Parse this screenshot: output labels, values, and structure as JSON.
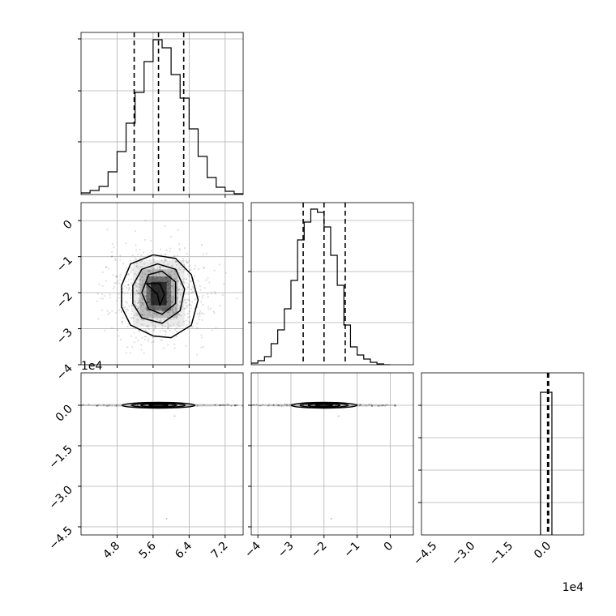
{
  "chart_data": {
    "type": "corner",
    "parameters": 3,
    "panels": [
      {
        "id": "hist-p1",
        "type": "histogram",
        "bins": [
          [
            4.0,
            4.2,
            0.01
          ],
          [
            4.2,
            4.4,
            0.025
          ],
          [
            4.4,
            4.6,
            0.05
          ],
          [
            4.6,
            4.8,
            0.14
          ],
          [
            4.8,
            5.0,
            0.265
          ],
          [
            5.0,
            5.2,
            0.44
          ],
          [
            5.2,
            5.4,
            0.63
          ],
          [
            5.4,
            5.6,
            0.82
          ],
          [
            5.6,
            5.8,
            0.955
          ],
          [
            5.8,
            6.0,
            0.905
          ],
          [
            6.0,
            6.2,
            0.74
          ],
          [
            6.2,
            6.4,
            0.595
          ],
          [
            6.4,
            6.6,
            0.405
          ],
          [
            6.6,
            6.8,
            0.235
          ],
          [
            6.8,
            7.0,
            0.105
          ],
          [
            7.0,
            7.2,
            0.045
          ],
          [
            7.2,
            7.4,
            0.02
          ],
          [
            7.4,
            7.6,
            0.005
          ]
        ],
        "quantiles": [
          5.18,
          5.72,
          6.28
        ],
        "xlim": [
          4.0,
          7.6
        ],
        "ylim": [
          0,
          1.0
        ],
        "xticks": [
          4.8,
          5.6,
          6.4,
          7.2
        ],
        "yticks": [
          0.325,
          0.64,
          0.96
        ]
      },
      {
        "id": "scatter-p1-p2",
        "type": "2d-density",
        "xlim": [
          4.0,
          7.6
        ],
        "ylim": [
          -4.0,
          0.5
        ],
        "yticks": [
          "0",
          "−1",
          "−2",
          "−3",
          "−4"
        ],
        "y_exponent": "1e4",
        "density_shading": [
          {
            "x": [
              5.15,
              6.3
            ],
            "y": [
              -2.95,
              -1.1
            ],
            "level": 0.08
          },
          {
            "x": [
              5.3,
              6.15
            ],
            "y": [
              -2.7,
              -1.35
            ],
            "level": 0.2
          },
          {
            "x": [
              5.45,
              6.0
            ],
            "y": [
              -2.5,
              -1.55
            ],
            "level": 0.4
          },
          {
            "x": [
              5.55,
              5.9
            ],
            "y": [
              -2.35,
              -1.7
            ],
            "level": 0.6
          }
        ],
        "contours": [
          [
            [
              4.9,
              -1.8
            ],
            [
              5.1,
              -1.2
            ],
            [
              5.6,
              -0.95
            ],
            [
              6.1,
              -1.05
            ],
            [
              6.45,
              -1.5
            ],
            [
              6.6,
              -2.2
            ],
            [
              6.45,
              -2.9
            ],
            [
              6.0,
              -3.25
            ],
            [
              5.6,
              -3.2
            ],
            [
              5.1,
              -2.9
            ],
            [
              4.9,
              -2.4
            ]
          ],
          [
            [
              5.15,
              -1.8
            ],
            [
              5.35,
              -1.35
            ],
            [
              5.7,
              -1.2
            ],
            [
              6.1,
              -1.35
            ],
            [
              6.3,
              -1.9
            ],
            [
              6.2,
              -2.5
            ],
            [
              5.8,
              -2.85
            ],
            [
              5.35,
              -2.7
            ],
            [
              5.15,
              -2.3
            ]
          ],
          [
            [
              5.35,
              -2.0
            ],
            [
              5.5,
              -1.5
            ],
            [
              5.8,
              -1.4
            ],
            [
              6.1,
              -1.7
            ],
            [
              6.1,
              -2.3
            ],
            [
              5.8,
              -2.6
            ],
            [
              5.5,
              -2.45
            ]
          ],
          [
            [
              5.45,
              -1.75
            ],
            [
              5.75,
              -1.75
            ],
            [
              5.85,
              -2.05
            ],
            [
              5.75,
              -2.35
            ],
            [
              5.7,
              -2.05
            ]
          ]
        ]
      },
      {
        "id": "hist-p2",
        "type": "histogram",
        "bins": [
          [
            -4.2,
            -4.0,
            0.01
          ],
          [
            -4.0,
            -3.8,
            0.025
          ],
          [
            -3.8,
            -3.6,
            0.05
          ],
          [
            -3.6,
            -3.4,
            0.13
          ],
          [
            -3.4,
            -3.2,
            0.215
          ],
          [
            -3.2,
            -3.0,
            0.345
          ],
          [
            -3.0,
            -2.8,
            0.52
          ],
          [
            -2.8,
            -2.6,
            0.77
          ],
          [
            -2.6,
            -2.4,
            0.88
          ],
          [
            -2.4,
            -2.2,
            0.96
          ],
          [
            -2.2,
            -2.0,
            0.94
          ],
          [
            -2.0,
            -1.8,
            0.85
          ],
          [
            -1.8,
            -1.6,
            0.675
          ],
          [
            -1.6,
            -1.4,
            0.49
          ],
          [
            -1.4,
            -1.2,
            0.245
          ],
          [
            -1.2,
            -1.0,
            0.11
          ],
          [
            -1.0,
            -0.8,
            0.06
          ],
          [
            -0.8,
            -0.6,
            0.035
          ],
          [
            -0.6,
            -0.4,
            0.015
          ],
          [
            -0.4,
            -0.2,
            0.005
          ],
          [
            -0.2,
            0.0,
            0.0
          ]
        ],
        "quantiles": [
          -2.63,
          -2.0,
          -1.36
        ],
        "xlim": [
          -4.2,
          0.7
        ],
        "ylim": [
          0,
          1.0
        ],
        "yticks": [
          0.26,
          0.575,
          0.89
        ]
      },
      {
        "id": "scatter-p1-p3",
        "type": "2d-density",
        "xlim": [
          4.0,
          7.6
        ],
        "ylim": [
          -4.8,
          1.2
        ],
        "xticks": [
          "4.8",
          "5.6",
          "6.4",
          "7.2"
        ],
        "yticks": [
          "0.0",
          "−1.5",
          "−3.0",
          "−4.5"
        ],
        "y_exponent": "1e4",
        "center": [
          5.72,
          0.0
        ],
        "width_x": [
          4.0,
          7.6
        ],
        "thickness_y": 0.12
      },
      {
        "id": "scatter-p2-p3",
        "type": "2d-density",
        "xlim": [
          -4.2,
          0.7
        ],
        "ylim": [
          -4.8,
          1.2
        ],
        "xticks": [
          "−4",
          "−3",
          "−2",
          "−1",
          "0"
        ],
        "center": [
          -2.0,
          0.0
        ],
        "width_x": [
          -4.2,
          0.2
        ],
        "thickness_y": 0.12
      },
      {
        "id": "hist-p3",
        "type": "histogram",
        "spike_x": [
          -0.3,
          0.15
        ],
        "spike_height": 0.88,
        "quantiles": [
          -0.02,
          0.0,
          0.02
        ],
        "xlim": [
          -5.0,
          1.4
        ],
        "ylim": [
          0,
          1.0
        ],
        "xticks": [
          "−4.5",
          "−3.0",
          "−1.5",
          "0.0"
        ],
        "x_exponent": "1e4",
        "yticks": [
          0.2,
          0.4,
          0.6,
          0.8
        ]
      }
    ]
  },
  "colors": {
    "axis": "#000000",
    "grid": "#b0b0b0",
    "density": "#000000",
    "background": "#ffffff"
  }
}
